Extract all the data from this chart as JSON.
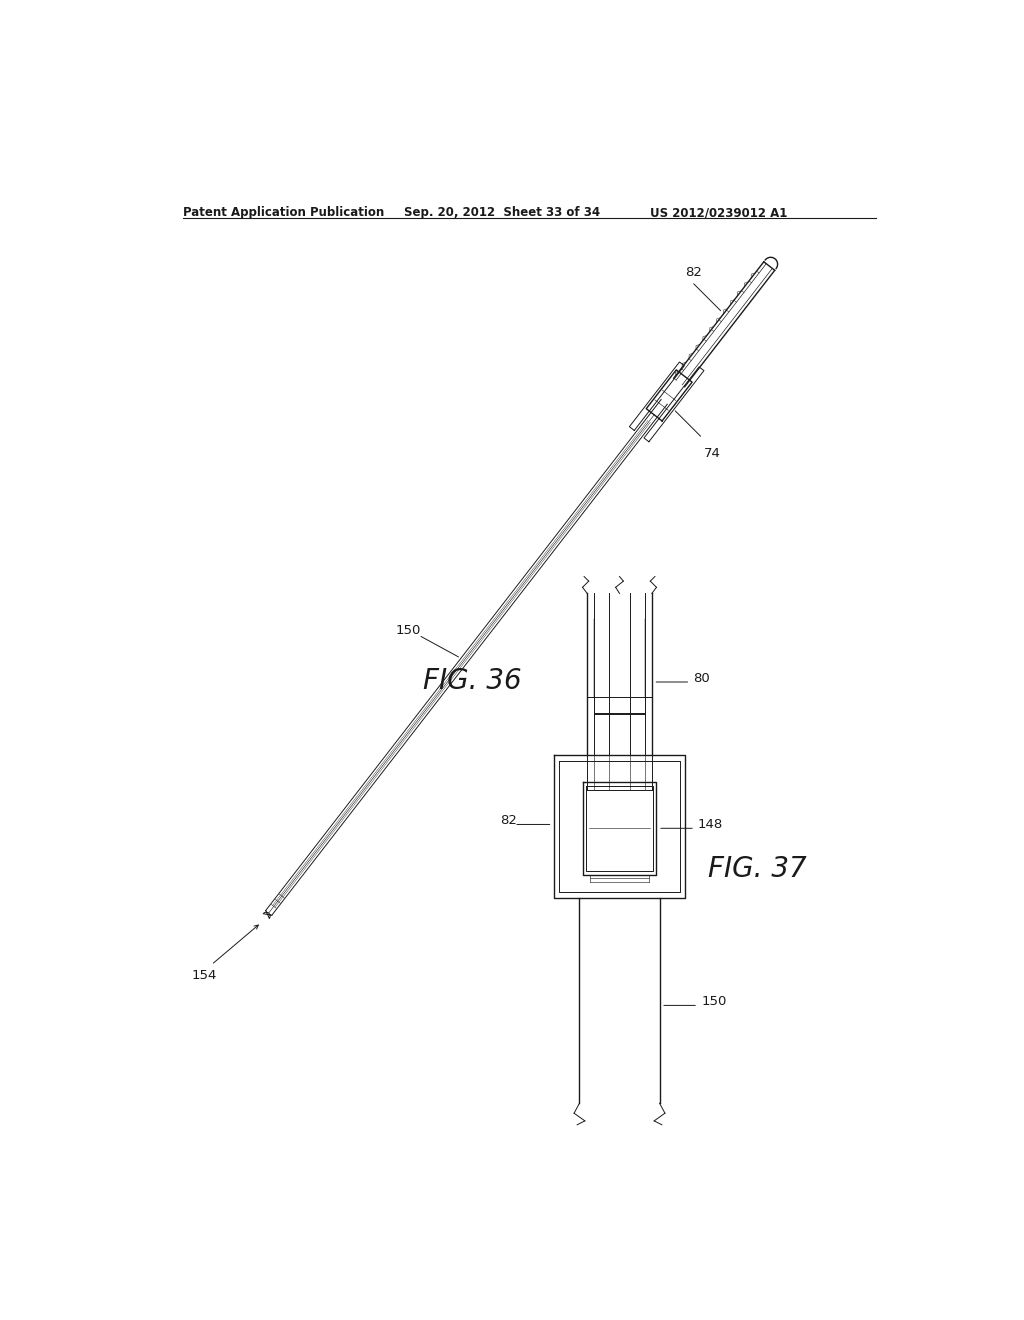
{
  "bg_color": "#ffffff",
  "header_left": "Patent Application Publication",
  "header_mid": "Sep. 20, 2012  Sheet 33 of 34",
  "header_right": "US 2012/0239012 A1",
  "fig36_label": "FIG. 36",
  "fig37_label": "FIG. 37",
  "labels": {
    "82_top": "82",
    "74": "74",
    "150_mid": "150",
    "154": "154",
    "80": "80",
    "82_bot": "82",
    "148": "148",
    "150_bot": "150"
  }
}
